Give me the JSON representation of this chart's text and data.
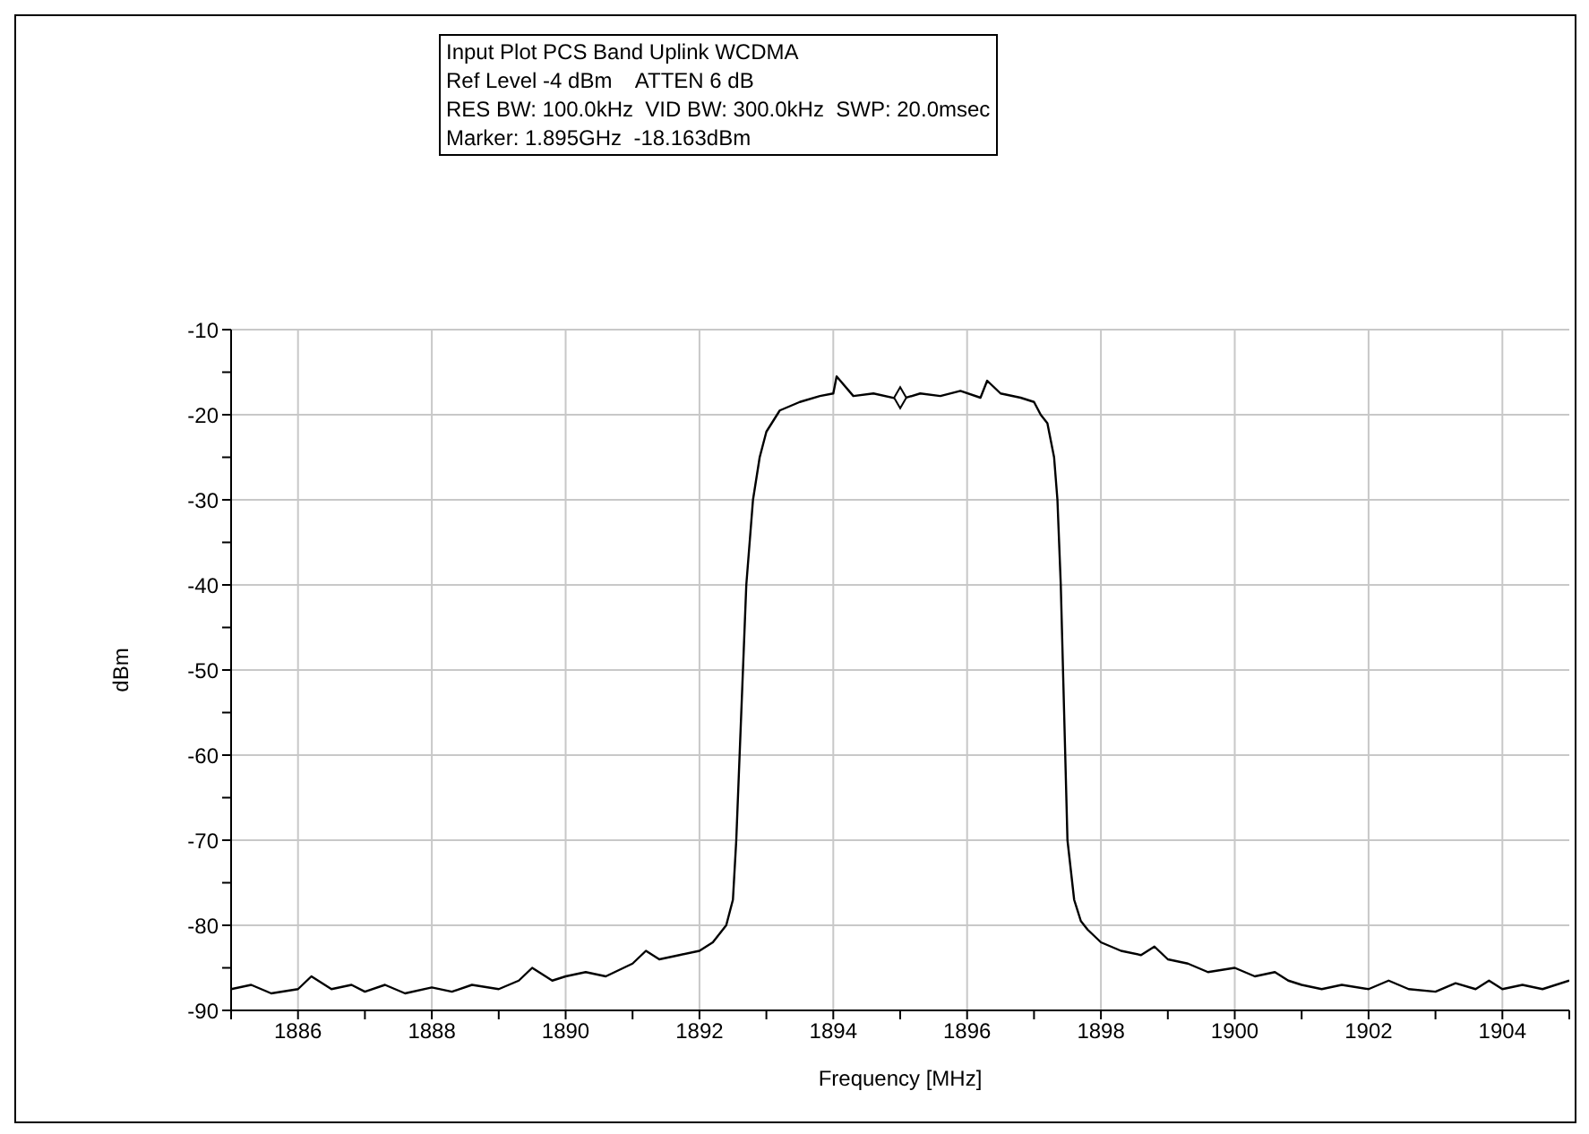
{
  "chart_data": {
    "type": "line",
    "title": "Input Plot PCS Band Uplink WCDMA",
    "annotations": [
      "Ref Level -4 dBm    ATTEN 6 dB",
      "RES BW: 100.0kHz  VID BW: 300.0kHz  SWP: 20.0msec",
      "Marker: 1.895GHz  -18.163dBm"
    ],
    "xlabel": "Frequency [MHz]",
    "ylabel": "dBm",
    "xlim": [
      1885,
      1905
    ],
    "ylim": [
      -90,
      -10
    ],
    "xticks": [
      {
        "value": 1885,
        "label": null
      },
      1886,
      {
        "value": 1887,
        "label": null
      },
      1888,
      {
        "value": 1889,
        "label": null
      },
      1890,
      {
        "value": 1891,
        "label": null
      },
      1892,
      {
        "value": 1893,
        "label": null
      },
      1894,
      {
        "value": 1895,
        "label": null
      },
      1896,
      {
        "value": 1897,
        "label": null
      },
      1898,
      {
        "value": 1899,
        "label": null
      },
      1900,
      {
        "value": 1901,
        "label": null
      },
      1902,
      {
        "value": 1903,
        "label": null
      },
      1904,
      {
        "value": 1905,
        "label": null
      }
    ],
    "yticks": [
      -90,
      {
        "value": -85,
        "label": null
      },
      -80,
      {
        "value": -75,
        "label": null
      },
      -70,
      {
        "value": -65,
        "label": null
      },
      -60,
      {
        "value": -55,
        "label": null
      },
      -50,
      {
        "value": -45,
        "label": null
      },
      -40,
      {
        "value": -35,
        "label": null
      },
      -30,
      {
        "value": -25,
        "label": null
      },
      -20,
      {
        "value": -15,
        "label": null
      },
      -10
    ],
    "grid": true,
    "line_style": "solid",
    "series": [
      {
        "color": "#000000",
        "marker": "none",
        "x": [
          1885,
          1885.3,
          1885.6,
          1886,
          1886.2,
          1886.5,
          1886.8,
          1887,
          1887.3,
          1887.6,
          1888,
          1888.3,
          1888.6,
          1889,
          1889.3,
          1889.5,
          1889.8,
          1890,
          1890.3,
          1890.6,
          1891,
          1891.2,
          1891.4,
          1891.7,
          1892,
          1892.2,
          1892.4,
          1892.5,
          1892.55,
          1892.6,
          1892.65,
          1892.7,
          1892.8,
          1892.9,
          1893,
          1893.2,
          1893.5,
          1893.8,
          1894,
          1894.05,
          1894.3,
          1894.6,
          1895,
          1895.3,
          1895.6,
          1895.9,
          1896.2,
          1896.3,
          1896.5,
          1896.8,
          1897,
          1897.1,
          1897.2,
          1897.3,
          1897.35,
          1897.4,
          1897.45,
          1897.5,
          1897.6,
          1897.7,
          1897.8,
          1898,
          1898.3,
          1898.6,
          1898.8,
          1899,
          1899.3,
          1899.6,
          1900,
          1900.3,
          1900.6,
          1900.8,
          1901,
          1901.3,
          1901.6,
          1902,
          1902.3,
          1902.6,
          1903,
          1903.3,
          1903.6,
          1903.8,
          1904,
          1904.3,
          1904.6,
          1905
        ],
        "values": [
          -87.5,
          -87,
          -88,
          -87.5,
          -86,
          -87.5,
          -87,
          -87.8,
          -87,
          -88,
          -87.3,
          -87.8,
          -87,
          -87.5,
          -86.5,
          -85,
          -86.5,
          -86,
          -85.5,
          -86,
          -84.5,
          -83,
          -84,
          -83.5,
          -83,
          -82,
          -80,
          -77,
          -70,
          -60,
          -50,
          -40,
          -30,
          -25,
          -22,
          -19.5,
          -18.5,
          -17.8,
          -17.5,
          -15.5,
          -17.8,
          -17.5,
          -18.2,
          -17.5,
          -17.8,
          -17.2,
          -18,
          -16,
          -17.5,
          -18,
          -18.5,
          -20,
          -21,
          -25,
          -30,
          -40,
          -55,
          -70,
          -77,
          -79.5,
          -80.5,
          -82,
          -83,
          -83.5,
          -82.5,
          -84,
          -84.5,
          -85.5,
          -85,
          -86,
          -85.5,
          -86.5,
          -87,
          -87.5,
          -87,
          -87.5,
          -86.5,
          -87.5,
          -87.8,
          -86.8,
          -87.5,
          -86.5,
          -87.5,
          -87,
          -87.5,
          -86.5
        ]
      },
      {
        "type": "scatter",
        "color": "#000000",
        "marker": "diamond",
        "x": [
          1895
        ],
        "values": [
          -18
        ]
      }
    ]
  }
}
